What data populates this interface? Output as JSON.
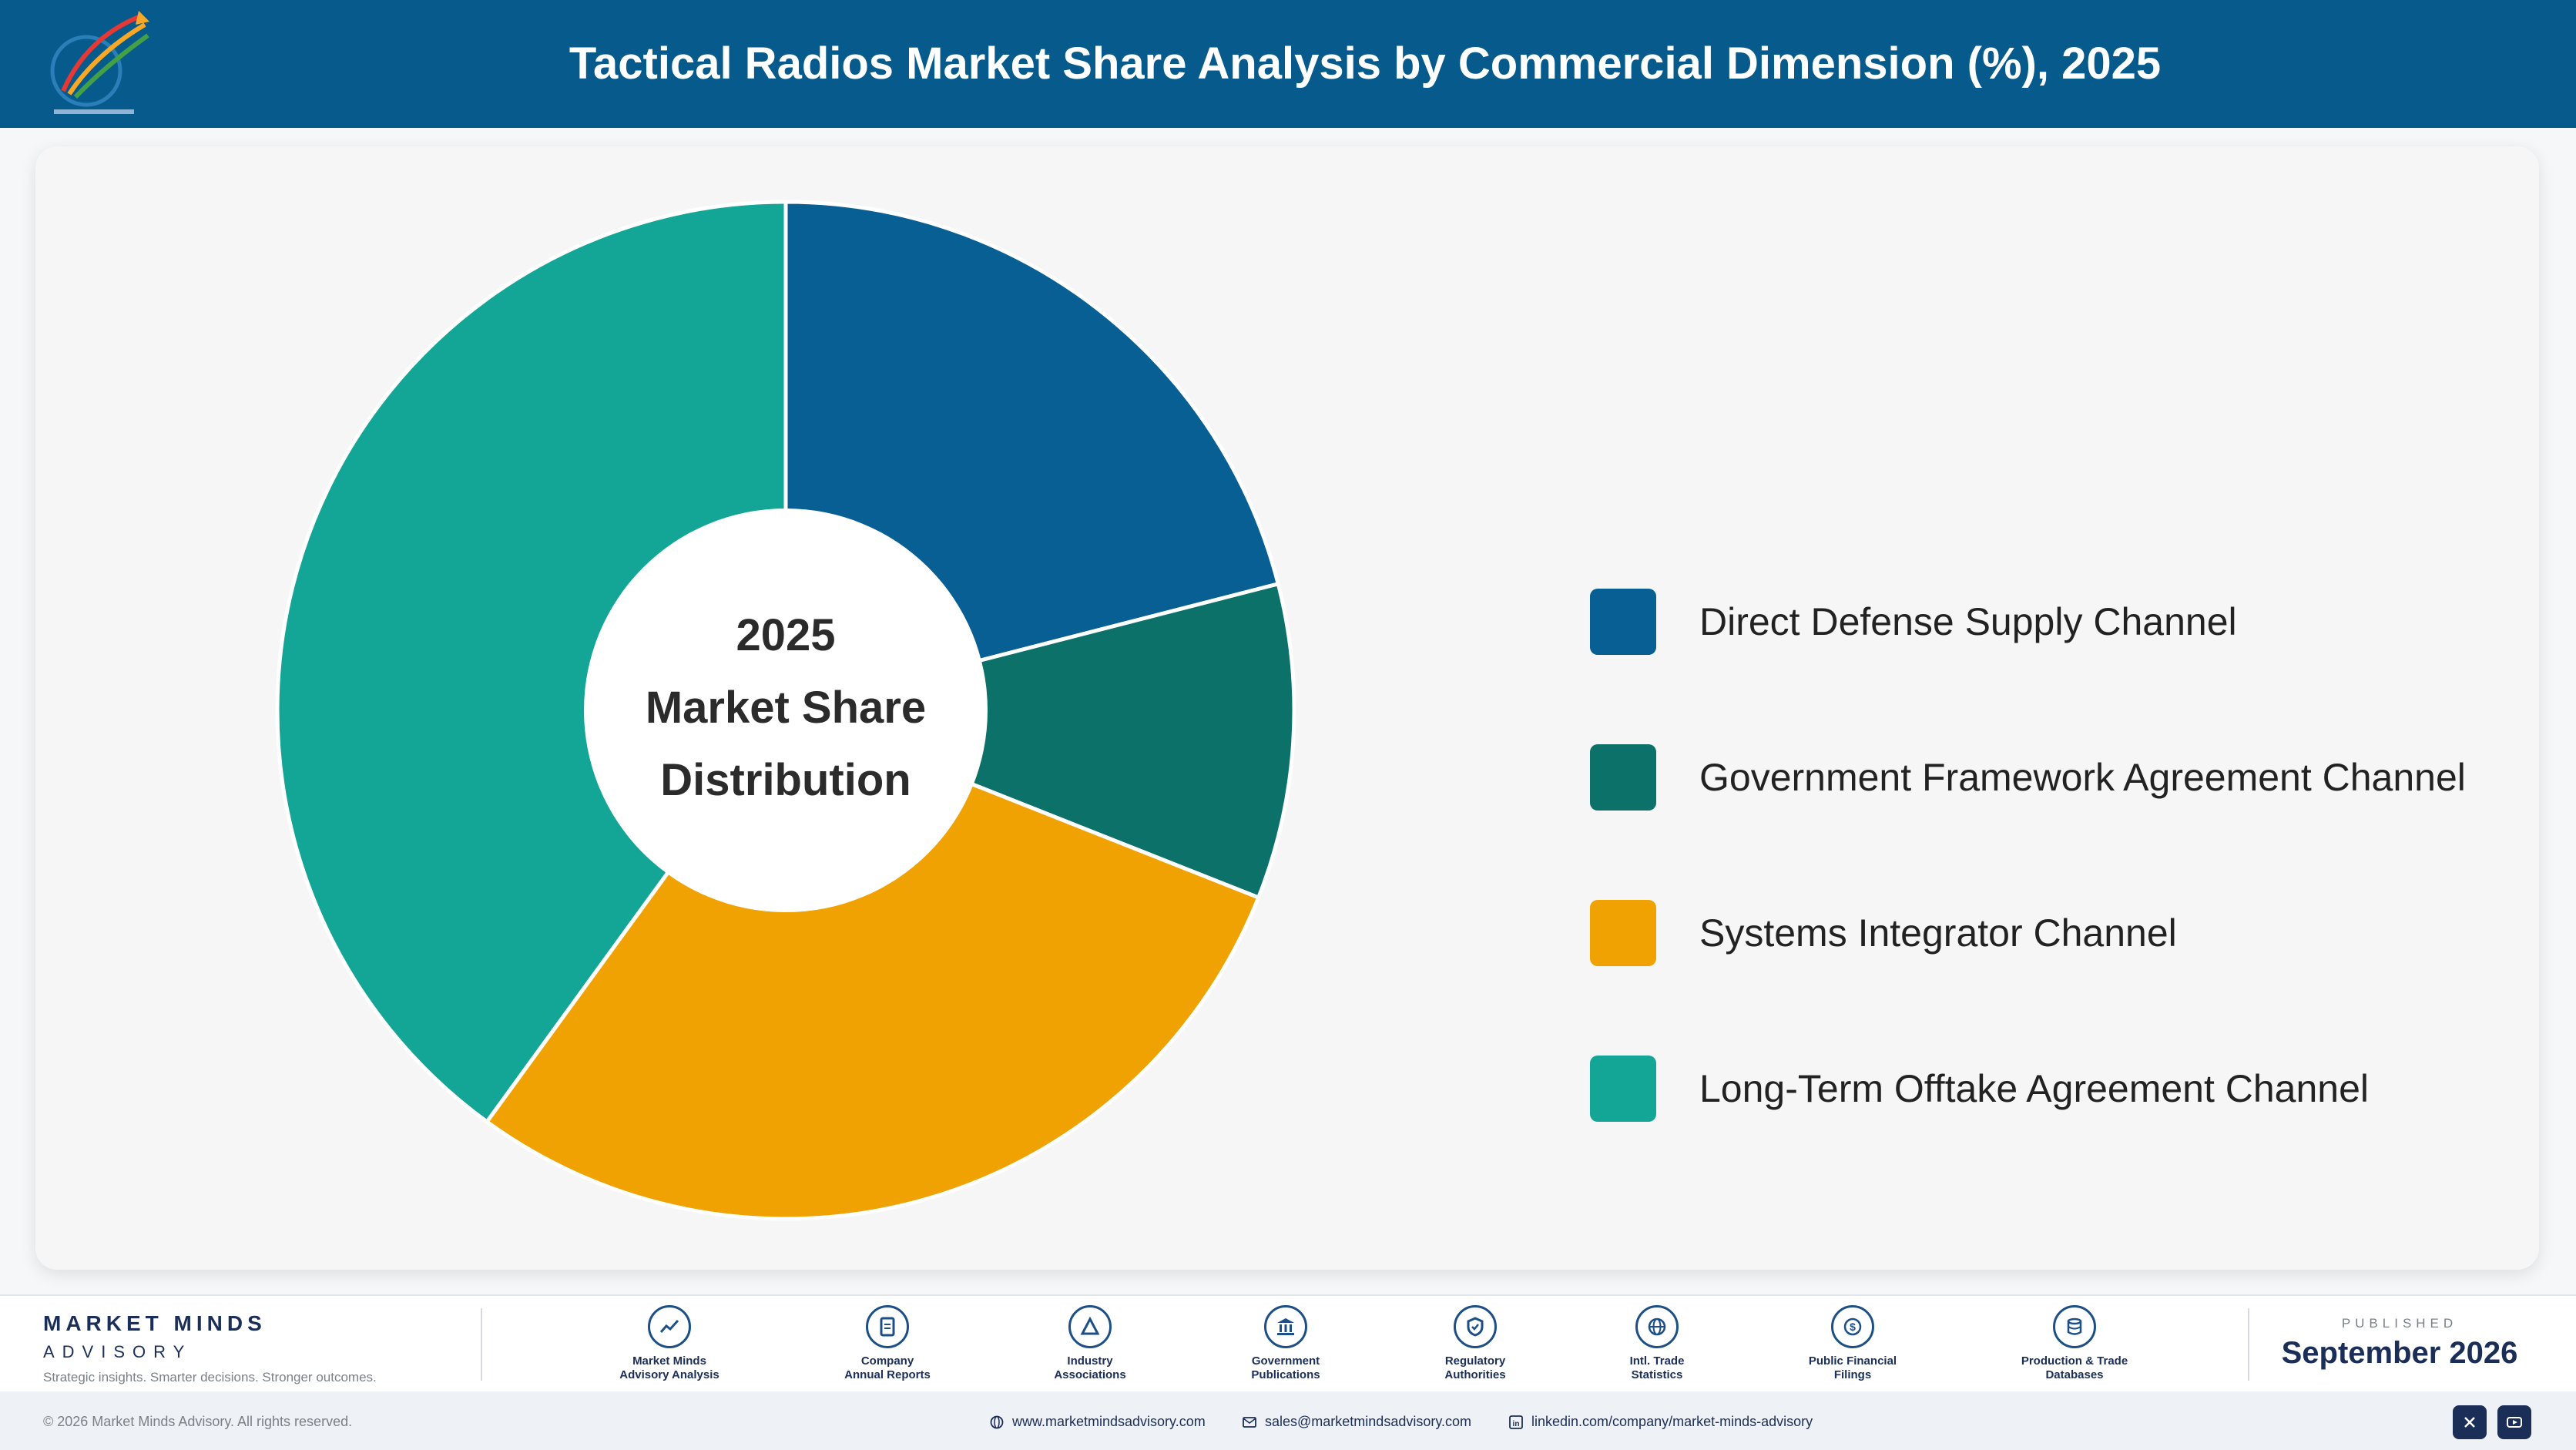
{
  "header": {
    "title": "Tactical Radios Market Share Analysis by Commercial Dimension (%), 2025",
    "logo_icon": "market-minds-logo",
    "bg_color": "#065a8c"
  },
  "chart_data": {
    "type": "pie",
    "donut": true,
    "title": "Tactical Radios Market Share Analysis by Commercial Dimension (%), 2025",
    "center_label": [
      "2025",
      "Market Share",
      "Distribution"
    ],
    "categories": [
      "Direct Defense Supply Channel",
      "Government Framework Agreement Channel",
      "Systems Integrator Channel",
      "Long-Term Offtake Agreement Channel"
    ],
    "values": [
      21,
      10,
      29,
      40
    ],
    "colors": [
      "#075f94",
      "#0b7169",
      "#f0a202",
      "#13a595"
    ],
    "legend_position": "right"
  },
  "footer": {
    "brand_name": "MARKET MINDS",
    "brand_sub": "ADVISORY",
    "brand_tagline": "Strategic insights. Smarter decisions. Stronger outcomes.",
    "sources": [
      {
        "line1": "Market Minds",
        "line2": "Advisory Analysis",
        "icon": "trend-chart-icon"
      },
      {
        "line1": "Company",
        "line2": "Annual Reports",
        "icon": "document-icon"
      },
      {
        "line1": "Industry",
        "line2": "Associations",
        "icon": "network-icon"
      },
      {
        "line1": "Government",
        "line2": "Publications",
        "icon": "government-building-icon"
      },
      {
        "line1": "Regulatory",
        "line2": "Authorities",
        "icon": "shield-check-icon"
      },
      {
        "line1": "Intl. Trade",
        "line2": "Statistics",
        "icon": "globe-icon"
      },
      {
        "line1": "Public Financial",
        "line2": "Filings",
        "icon": "dollar-coin-icon"
      },
      {
        "line1": "Production & Trade",
        "line2": "Databases",
        "icon": "database-icon"
      }
    ],
    "published_label": "PUBLISHED",
    "published_date": "September 2026",
    "copyright": "© 2026 Market Minds Advisory. All rights reserved.",
    "website": "www.marketmindsadvisory.com",
    "email": "sales@marketmindsadvisory.com",
    "linkedin": "linkedin.com/company/market-minds-advisory",
    "social": [
      "x-icon",
      "youtube-icon"
    ]
  }
}
